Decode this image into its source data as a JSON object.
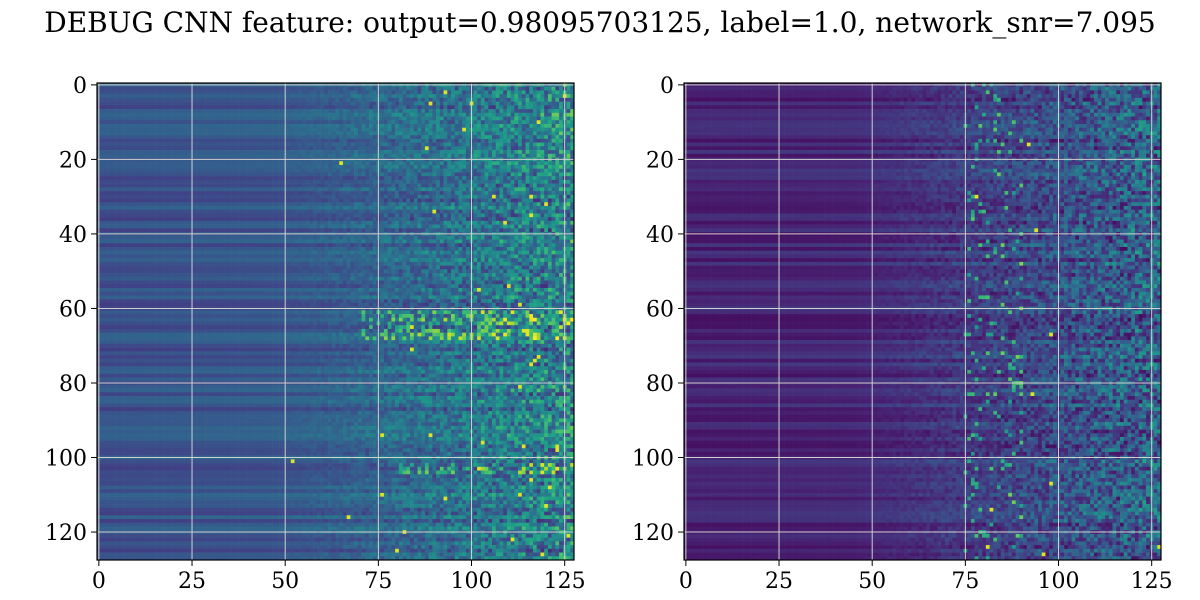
{
  "chart_data": {
    "title": "DEBUG CNN feature: output=0.98095703125, label=1.0, network_snr=7.095",
    "type": "heatmap",
    "colormap": "viridis",
    "grid": true,
    "panels": [
      {
        "name": "",
        "rows": 128,
        "cols": 128,
        "xlim": [
          -0.5,
          127.5
        ],
        "ylim": [
          127.5,
          -0.5
        ],
        "xticks": [
          0,
          25,
          50,
          75,
          100,
          125
        ],
        "yticks": [
          0,
          20,
          40,
          60,
          80,
          100,
          120
        ],
        "xtick_labels": [
          "0",
          "25",
          "50",
          "75",
          "100",
          "125"
        ],
        "ytick_labels": [
          "0",
          "20",
          "40",
          "60",
          "80",
          "100",
          "120"
        ],
        "value_range": [
          0,
          1
        ],
        "pattern": "smooth horizontal bands (low-mid values) for columns 0-60, increasingly noisy with bright speckles for columns 70-127; bright bands near rows 62-68 and 103"
      },
      {
        "name": "",
        "rows": 128,
        "cols": 128,
        "xlim": [
          -0.5,
          127.5
        ],
        "ylim": [
          127.5,
          -0.5
        ],
        "xticks": [
          0,
          25,
          50,
          75,
          100,
          125
        ],
        "yticks": [
          0,
          20,
          40,
          60,
          80,
          100,
          120
        ],
        "xtick_labels": [
          "0",
          "25",
          "50",
          "75",
          "100",
          "125"
        ],
        "ytick_labels": [
          "0",
          "20",
          "40",
          "60",
          "80",
          "100",
          "120"
        ],
        "value_range": [
          0,
          1
        ],
        "pattern": "dark purple bands for columns 0-60, noisy blue-green texture for columns 70-127; bright yellow-green speckles around columns 75-90"
      }
    ]
  }
}
